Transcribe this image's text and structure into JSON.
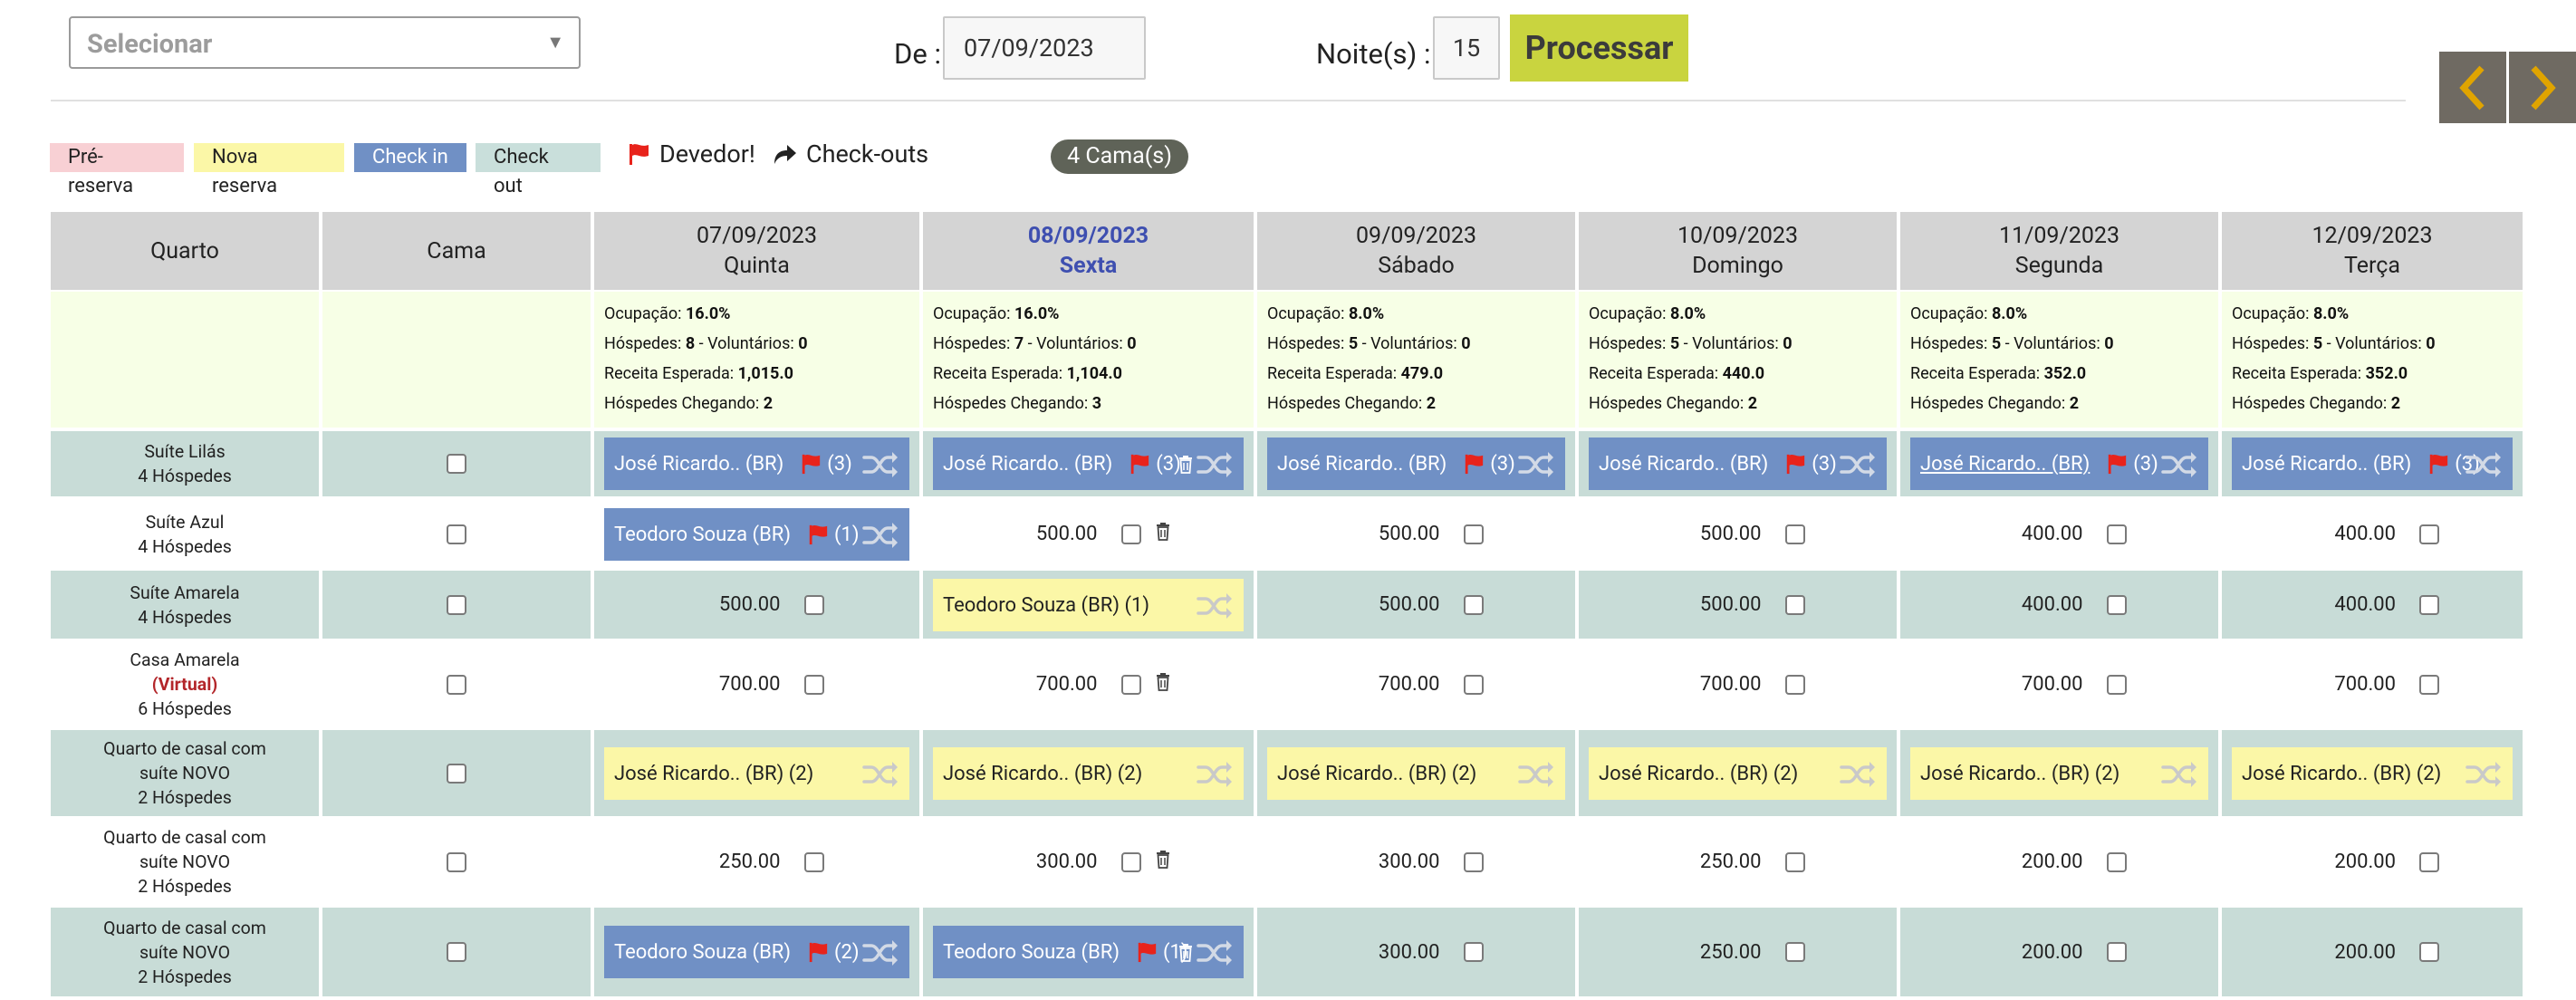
{
  "topbar": {
    "select_placeholder": "Selecionar",
    "date_label": "De :",
    "date_value": "07/09/2023",
    "nights_label": "Noite(s) :",
    "nights_value": "15",
    "process_label": "Processar"
  },
  "legend": {
    "items": [
      {
        "label": "Pré-reserva",
        "color": "#f8d0d4"
      },
      {
        "label": "Nova reserva",
        "color": "#fbf7a7"
      },
      {
        "label": "Check in",
        "color": "#7090c5"
      },
      {
        "label": "Check out",
        "color": "#c9dfdb"
      }
    ],
    "debtor_label": "Devedor!",
    "checkouts_label": "Check-outs",
    "beds_badge": "4 Cama(s)"
  },
  "colors": {
    "header_bg": "#d4d4d4",
    "stats_bg": "#f7ffe6",
    "row_odd_bg": "#c8dcd7",
    "row_even_bg": "#ffffff",
    "checkin_blue": "#7090c5",
    "new_yellow": "#fbf7a7",
    "process_btn": "#c9d43f",
    "debtor_flag": "#e8231b"
  },
  "table": {
    "col_room": "Quarto",
    "col_bed": "Cama",
    "days": [
      {
        "date": "07/09/2023",
        "weekday": "Quinta",
        "today": false,
        "occupancy": "16.0%",
        "guests": "8",
        "volunteers": "0",
        "revenue": "1,015.0",
        "arriving": "2"
      },
      {
        "date": "08/09/2023",
        "weekday": "Sexta",
        "today": true,
        "occupancy": "16.0%",
        "guests": "7",
        "volunteers": "0",
        "revenue": "1,104.0",
        "arriving": "3"
      },
      {
        "date": "09/09/2023",
        "weekday": "Sábado",
        "today": false,
        "occupancy": "8.0%",
        "guests": "5",
        "volunteers": "0",
        "revenue": "479.0",
        "arriving": "2"
      },
      {
        "date": "10/09/2023",
        "weekday": "Domingo",
        "today": false,
        "occupancy": "8.0%",
        "guests": "5",
        "volunteers": "0",
        "revenue": "440.0",
        "arriving": "2"
      },
      {
        "date": "11/09/2023",
        "weekday": "Segunda",
        "today": false,
        "occupancy": "8.0%",
        "guests": "5",
        "volunteers": "0",
        "revenue": "352.0",
        "arriving": "2"
      },
      {
        "date": "12/09/2023",
        "weekday": "Terça",
        "today": false,
        "occupancy": "8.0%",
        "guests": "5",
        "volunteers": "0",
        "revenue": "352.0",
        "arriving": "2"
      }
    ],
    "stats_labels": {
      "occupancy": "Ocupação: ",
      "guests": "Hóspedes: ",
      "volunteers": " - Voluntários: ",
      "revenue": "Receita Esperada: ",
      "arriving": "Hóspedes Chegando: "
    },
    "rows": [
      {
        "room": [
          "Suíte Lilás",
          "4 Hóspedes"
        ],
        "virtual": null,
        "cells": [
          {
            "type": "booking",
            "style": "blue",
            "name": "José Ricardo.. (BR)",
            "flag": true,
            "count": "(3)"
          },
          {
            "type": "booking",
            "style": "blue",
            "name": "José Ricardo.. (BR)",
            "flag": true,
            "count": "(3)",
            "trash": true
          },
          {
            "type": "booking",
            "style": "blue",
            "name": "José Ricardo.. (BR)",
            "flag": true,
            "count": "(3)"
          },
          {
            "type": "booking",
            "style": "blue",
            "name": "José Ricardo.. (BR)",
            "flag": true,
            "count": "(3)"
          },
          {
            "type": "booking",
            "style": "blue",
            "name": "José Ricardo.. (BR)",
            "flag": true,
            "count": "(3)",
            "underline": true
          },
          {
            "type": "booking",
            "style": "blue",
            "name": "José Ricardo.. (BR)",
            "flag": true,
            "count": "(3)"
          }
        ]
      },
      {
        "room": [
          "Suíte Azul",
          "4 Hóspedes"
        ],
        "virtual": null,
        "cells": [
          {
            "type": "booking",
            "style": "blue",
            "name": "Teodoro Souza (BR)",
            "flag": true,
            "count": "(1)"
          },
          {
            "type": "price",
            "value": "500.00",
            "trash": true
          },
          {
            "type": "price",
            "value": "500.00"
          },
          {
            "type": "price",
            "value": "500.00"
          },
          {
            "type": "price",
            "value": "400.00"
          },
          {
            "type": "price",
            "value": "400.00"
          }
        ]
      },
      {
        "room": [
          "Suíte Amarela",
          "4 Hóspedes"
        ],
        "virtual": null,
        "cells": [
          {
            "type": "price",
            "value": "500.00"
          },
          {
            "type": "booking",
            "style": "yellow",
            "name": "Teodoro Souza (BR) (1)",
            "flag": false,
            "count": ""
          },
          {
            "type": "price",
            "value": "500.00"
          },
          {
            "type": "price",
            "value": "500.00"
          },
          {
            "type": "price",
            "value": "400.00"
          },
          {
            "type": "price",
            "value": "400.00"
          }
        ]
      },
      {
        "room": [
          "Casa Amarela",
          "6 Hóspedes"
        ],
        "virtual": "(Virtual)",
        "cells": [
          {
            "type": "price",
            "value": "700.00"
          },
          {
            "type": "price",
            "value": "700.00",
            "trash": true
          },
          {
            "type": "price",
            "value": "700.00"
          },
          {
            "type": "price",
            "value": "700.00"
          },
          {
            "type": "price",
            "value": "700.00"
          },
          {
            "type": "price",
            "value": "700.00"
          }
        ]
      },
      {
        "room": [
          "Quarto de casal com",
          "suíte NOVO",
          "2 Hóspedes"
        ],
        "virtual": null,
        "cells": [
          {
            "type": "booking",
            "style": "yellow",
            "name": "José Ricardo.. (BR) (2)",
            "flag": false,
            "count": ""
          },
          {
            "type": "booking",
            "style": "yellow",
            "name": "José Ricardo.. (BR) (2)",
            "flag": false,
            "count": ""
          },
          {
            "type": "booking",
            "style": "yellow",
            "name": "José Ricardo.. (BR) (2)",
            "flag": false,
            "count": ""
          },
          {
            "type": "booking",
            "style": "yellow",
            "name": "José Ricardo.. (BR) (2)",
            "flag": false,
            "count": ""
          },
          {
            "type": "booking",
            "style": "yellow",
            "name": "José Ricardo.. (BR) (2)",
            "flag": false,
            "count": ""
          },
          {
            "type": "booking",
            "style": "yellow",
            "name": "José Ricardo.. (BR) (2)",
            "flag": false,
            "count": ""
          }
        ]
      },
      {
        "room": [
          "Quarto de casal com",
          "suíte NOVO",
          "2 Hóspedes"
        ],
        "virtual": null,
        "cells": [
          {
            "type": "price",
            "value": "250.00"
          },
          {
            "type": "price",
            "value": "300.00",
            "trash": true
          },
          {
            "type": "price",
            "value": "300.00"
          },
          {
            "type": "price",
            "value": "250.00"
          },
          {
            "type": "price",
            "value": "200.00"
          },
          {
            "type": "price",
            "value": "200.00"
          }
        ]
      },
      {
        "room": [
          "Quarto de casal com",
          "suíte NOVO",
          "2 Hóspedes"
        ],
        "virtual": null,
        "cells": [
          {
            "type": "booking",
            "style": "blue",
            "name": "Teodoro Souza (BR)",
            "flag": true,
            "count": "(2)"
          },
          {
            "type": "booking",
            "style": "blue",
            "name": "Teodoro Souza (BR)",
            "flag": true,
            "count": "(1)",
            "trash": true
          },
          {
            "type": "price",
            "value": "300.00"
          },
          {
            "type": "price",
            "value": "250.00"
          },
          {
            "type": "price",
            "value": "200.00"
          },
          {
            "type": "price",
            "value": "200.00"
          }
        ]
      }
    ]
  }
}
